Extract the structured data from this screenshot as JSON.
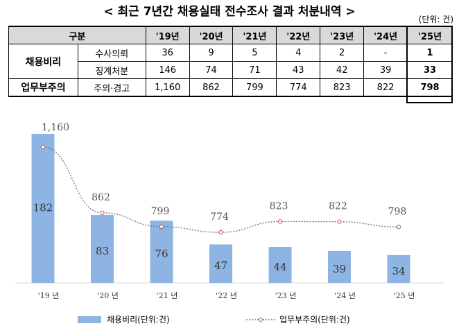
{
  "title": "< 최근 7년간 채용실태 전수조사 결과 처분내역 >",
  "unit": "(단위: 건)",
  "table": {
    "header": [
      "구분",
      "'19년",
      "'20년",
      "'21년",
      "'22년",
      "'23년",
      "'24년",
      "'25년"
    ],
    "groups": [
      {
        "label": "채용비리",
        "rows": [
          {
            "label": "수사의뢰",
            "values": [
              "36",
              "9",
              "5",
              "4",
              "2",
              "-",
              "1"
            ]
          },
          {
            "label": "징계처분",
            "values": [
              "146",
              "74",
              "71",
              "43",
              "42",
              "39",
              "33"
            ]
          }
        ]
      },
      {
        "label": "업무부주의",
        "rows": [
          {
            "label": "주의·경고",
            "values": [
              "1,160",
              "862",
              "799",
              "774",
              "823",
              "822",
              "798"
            ]
          }
        ]
      }
    ]
  },
  "chart_data": {
    "type": "bar",
    "categories": [
      "'19 년",
      "'20 년",
      "'21 년",
      "'22 년",
      "'23 년",
      "'24 년",
      "'25 년"
    ],
    "series": [
      {
        "name": "채용비리(단위:건)",
        "type": "bar",
        "values": [
          182,
          83,
          76,
          47,
          44,
          39,
          34
        ],
        "labels": [
          "182",
          "83",
          "76",
          "47",
          "44",
          "39",
          "34"
        ],
        "color": "#8eb4e3"
      },
      {
        "name": "업무부주의(단위:건)",
        "type": "line",
        "values": [
          1160,
          862,
          799,
          774,
          823,
          822,
          798
        ],
        "labels": [
          "1,160",
          "862",
          "799",
          "774",
          "823",
          "822",
          "798"
        ],
        "color": "#c0504d"
      }
    ],
    "legend_position": "bottom",
    "grid": false
  }
}
